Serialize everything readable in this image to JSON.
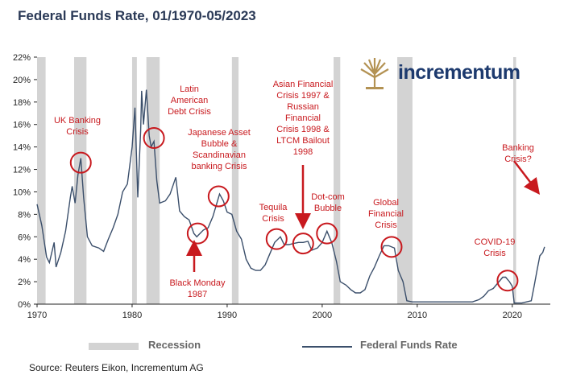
{
  "title": "Federal Funds Rate, 01/1970-05/2023",
  "source": "Source: Reuters Eikon, Incrementum AG",
  "logo": {
    "text": "incrementum",
    "emblem": "tree-emblem-icon"
  },
  "legend": {
    "recession": "Recession",
    "rate": "Federal Funds Rate"
  },
  "colors": {
    "line": "#3b4f6b",
    "recession": "#d3d3d3",
    "annotation": "#c8191e",
    "title": "#2b3a57"
  },
  "chart_data": {
    "type": "line",
    "title": "Federal Funds Rate, 01/1970-05/2023",
    "xlabel": "",
    "ylabel": "",
    "xlim": [
      1970,
      2024
    ],
    "ylim": [
      0,
      22
    ],
    "x_ticks": [
      1970,
      1980,
      1990,
      2000,
      2010,
      2020
    ],
    "x_tick_labels": [
      "1970",
      "1980",
      "1990",
      "2000",
      "2010",
      "2020"
    ],
    "y_ticks": [
      0,
      2,
      4,
      6,
      8,
      10,
      12,
      14,
      16,
      18,
      20,
      22
    ],
    "y_tick_labels": [
      "0%",
      "2%",
      "4%",
      "6%",
      "8%",
      "10%",
      "12%",
      "14%",
      "16%",
      "18%",
      "20%",
      "22%"
    ],
    "grid": false,
    "legend_position": "bottom",
    "recessions": [
      [
        1970.0,
        1970.9
      ],
      [
        1973.9,
        1975.2
      ],
      [
        1980.0,
        1980.5
      ],
      [
        1981.5,
        1982.9
      ],
      [
        1990.5,
        1991.2
      ],
      [
        2001.2,
        2001.9
      ],
      [
        2007.9,
        2009.5
      ],
      [
        2020.1,
        2020.4
      ]
    ],
    "series": [
      {
        "x": [
          1970.0,
          1970.5,
          1971.0,
          1971.3,
          1971.8,
          1972.0,
          1972.5,
          1973.0,
          1973.5,
          1973.7,
          1974.0,
          1974.3,
          1974.6,
          1974.9,
          1975.3,
          1975.8,
          1976.5,
          1977.0,
          1977.5,
          1978.0,
          1978.5,
          1979.0,
          1979.5,
          1980.0,
          1980.3,
          1980.6,
          1980.9,
          1981.0,
          1981.2,
          1981.5,
          1981.8,
          1982.0,
          1982.3,
          1982.6,
          1982.9,
          1983.5,
          1984.0,
          1984.6,
          1985.0,
          1985.5,
          1986.0,
          1986.5,
          1986.8,
          1987.5,
          1988.0,
          1988.5,
          1989.2,
          1989.6,
          1990.0,
          1990.5,
          1991.0,
          1991.5,
          1992.0,
          1992.5,
          1993.0,
          1993.5,
          1994.0,
          1994.5,
          1995.0,
          1995.6,
          1996.0,
          1996.5,
          1997.0,
          1997.5,
          1998.0,
          1998.5,
          1998.9,
          1999.5,
          2000.0,
          2000.5,
          2001.0,
          2001.5,
          2001.9,
          2002.5,
          2003.0,
          2003.5,
          2004.0,
          2004.5,
          2005.0,
          2005.5,
          2006.0,
          2006.5,
          2007.0,
          2007.6,
          2008.0,
          2008.5,
          2008.9,
          2009.5,
          2015.8,
          2016.5,
          2017.0,
          2017.5,
          2018.0,
          2018.5,
          2019.0,
          2019.3,
          2019.7,
          2020.0,
          2020.2,
          2020.4,
          2021.0,
          2022.0,
          2022.3,
          2022.6,
          2022.9,
          2023.2,
          2023.4
        ],
        "y": [
          8.9,
          7.0,
          4.2,
          3.7,
          5.5,
          3.3,
          4.6,
          6.5,
          9.5,
          10.5,
          9.0,
          11.5,
          13.0,
          9.5,
          6.0,
          5.2,
          5.0,
          4.7,
          5.8,
          6.8,
          8.0,
          10.0,
          10.7,
          14.0,
          17.5,
          9.5,
          15.5,
          19.0,
          16.0,
          19.1,
          15.0,
          14.0,
          14.5,
          11.0,
          9.0,
          9.2,
          9.8,
          11.3,
          8.3,
          7.8,
          7.5,
          6.3,
          6.0,
          6.6,
          6.8,
          7.8,
          9.8,
          9.2,
          8.2,
          8.0,
          6.5,
          5.8,
          4.0,
          3.2,
          3.0,
          3.0,
          3.5,
          4.5,
          5.5,
          6.0,
          5.3,
          5.3,
          5.4,
          5.5,
          5.5,
          5.6,
          4.8,
          5.0,
          5.5,
          6.5,
          5.5,
          3.8,
          2.0,
          1.7,
          1.3,
          1.0,
          1.0,
          1.3,
          2.5,
          3.3,
          4.3,
          5.2,
          5.2,
          5.0,
          3.0,
          2.0,
          0.3,
          0.2,
          0.2,
          0.4,
          0.7,
          1.2,
          1.4,
          1.9,
          2.4,
          2.4,
          2.0,
          1.6,
          0.1,
          0.1,
          0.1,
          0.3,
          1.6,
          3.0,
          4.3,
          4.6,
          5.1
        ]
      }
    ],
    "annotations": [
      {
        "text": "UK Banking Crisis",
        "lines": [
          "UK Banking",
          "Crisis"
        ]
      },
      {
        "text": "Latin American Debt Crisis",
        "lines": [
          "Latin",
          "American",
          "Debt Crisis"
        ]
      },
      {
        "text": "Japanese Asset Bubble & Scandinavian banking Crisis",
        "lines": [
          "Japanese Asset",
          "Bubble &",
          "Scandinavian",
          "banking Crisis"
        ]
      },
      {
        "text": "Black Monday 1987",
        "lines": [
          "Black Monday",
          "1987"
        ]
      },
      {
        "text": "Tequila Crisis",
        "lines": [
          "Tequila",
          "Crisis"
        ]
      },
      {
        "text": "Asian Financial Crisis 1997 & Russian Financial Crisis 1998 & LTCM Bailout 1998",
        "lines": [
          "Asian Financial",
          "Crisis 1997 &",
          "Russian",
          "Financial",
          "Crisis 1998 &",
          "LTCM Bailout",
          "1998"
        ]
      },
      {
        "text": "Dot-com Bubble",
        "lines": [
          "Dot-com",
          "Bubble"
        ]
      },
      {
        "text": "Global Financial Crisis",
        "lines": [
          "Global",
          "Financial",
          "Crisis"
        ]
      },
      {
        "text": "COVID-19 Crisis",
        "lines": [
          "COVID-19",
          "Crisis"
        ]
      },
      {
        "text": "Banking Crisis?",
        "lines": [
          "Banking",
          "Crisis?"
        ]
      }
    ]
  }
}
